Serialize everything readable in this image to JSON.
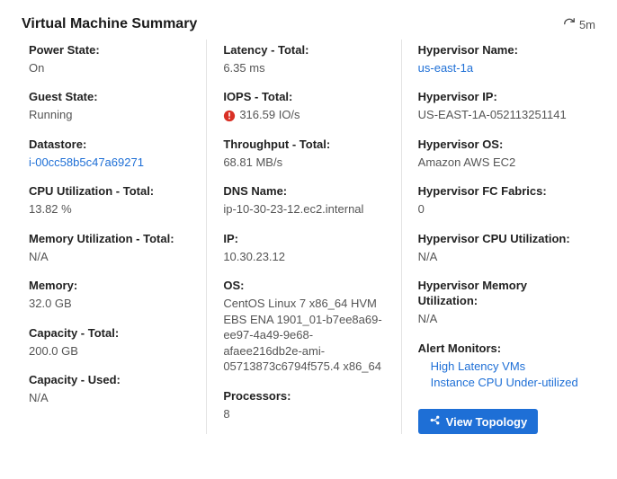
{
  "header": {
    "title": "Virtual Machine Summary",
    "refresh_interval": "5m"
  },
  "col1": [
    {
      "label": "Power State:",
      "value": "On"
    },
    {
      "label": "Guest State:",
      "value": "Running"
    },
    {
      "label": "Datastore:",
      "value": "i-00cc58b5c47a69271",
      "link": true
    },
    {
      "label": "CPU Utilization - Total:",
      "value": "13.82 %"
    },
    {
      "label": "Memory Utilization - Total:",
      "value": "N/A"
    },
    {
      "label": "Memory:",
      "value": "32.0 GB"
    },
    {
      "label": "Capacity - Total:",
      "value": "200.0 GB"
    },
    {
      "label": "Capacity - Used:",
      "value": "N/A"
    }
  ],
  "col2": [
    {
      "label": "Latency - Total:",
      "value": "6.35 ms"
    },
    {
      "label": "IOPS - Total:",
      "value": "316.59 IO/s",
      "warn": true
    },
    {
      "label": "Throughput - Total:",
      "value": "68.81 MB/s"
    },
    {
      "label": "DNS Name:",
      "value": "ip-10-30-23-12.ec2.internal"
    },
    {
      "label": "IP:",
      "value": "10.30.23.12"
    },
    {
      "label": "OS:",
      "value": "CentOS Linux 7 x86_64 HVM EBS ENA 1901_01-b7ee8a69-ee97-4a49-9e68-afaee216db2e-ami-05713873c6794f575.4 x86_64"
    },
    {
      "label": "Processors:",
      "value": "8"
    }
  ],
  "col3": [
    {
      "label": "Hypervisor Name:",
      "value": "us-east-1a",
      "link": true
    },
    {
      "label": "Hypervisor IP:",
      "value": "US-EAST-1A-052113251141"
    },
    {
      "label": "Hypervisor OS:",
      "value": "Amazon AWS EC2"
    },
    {
      "label": "Hypervisor FC Fabrics:",
      "value": "0"
    },
    {
      "label": "Hypervisor CPU Utilization:",
      "value": "N/A"
    },
    {
      "label": "Hypervisor Memory Utilization:",
      "value": "N/A"
    }
  ],
  "alerts": {
    "label": "Alert Monitors:",
    "items": [
      "High Latency VMs",
      "Instance CPU Under-utilized"
    ]
  },
  "topology_button": "View Topology"
}
